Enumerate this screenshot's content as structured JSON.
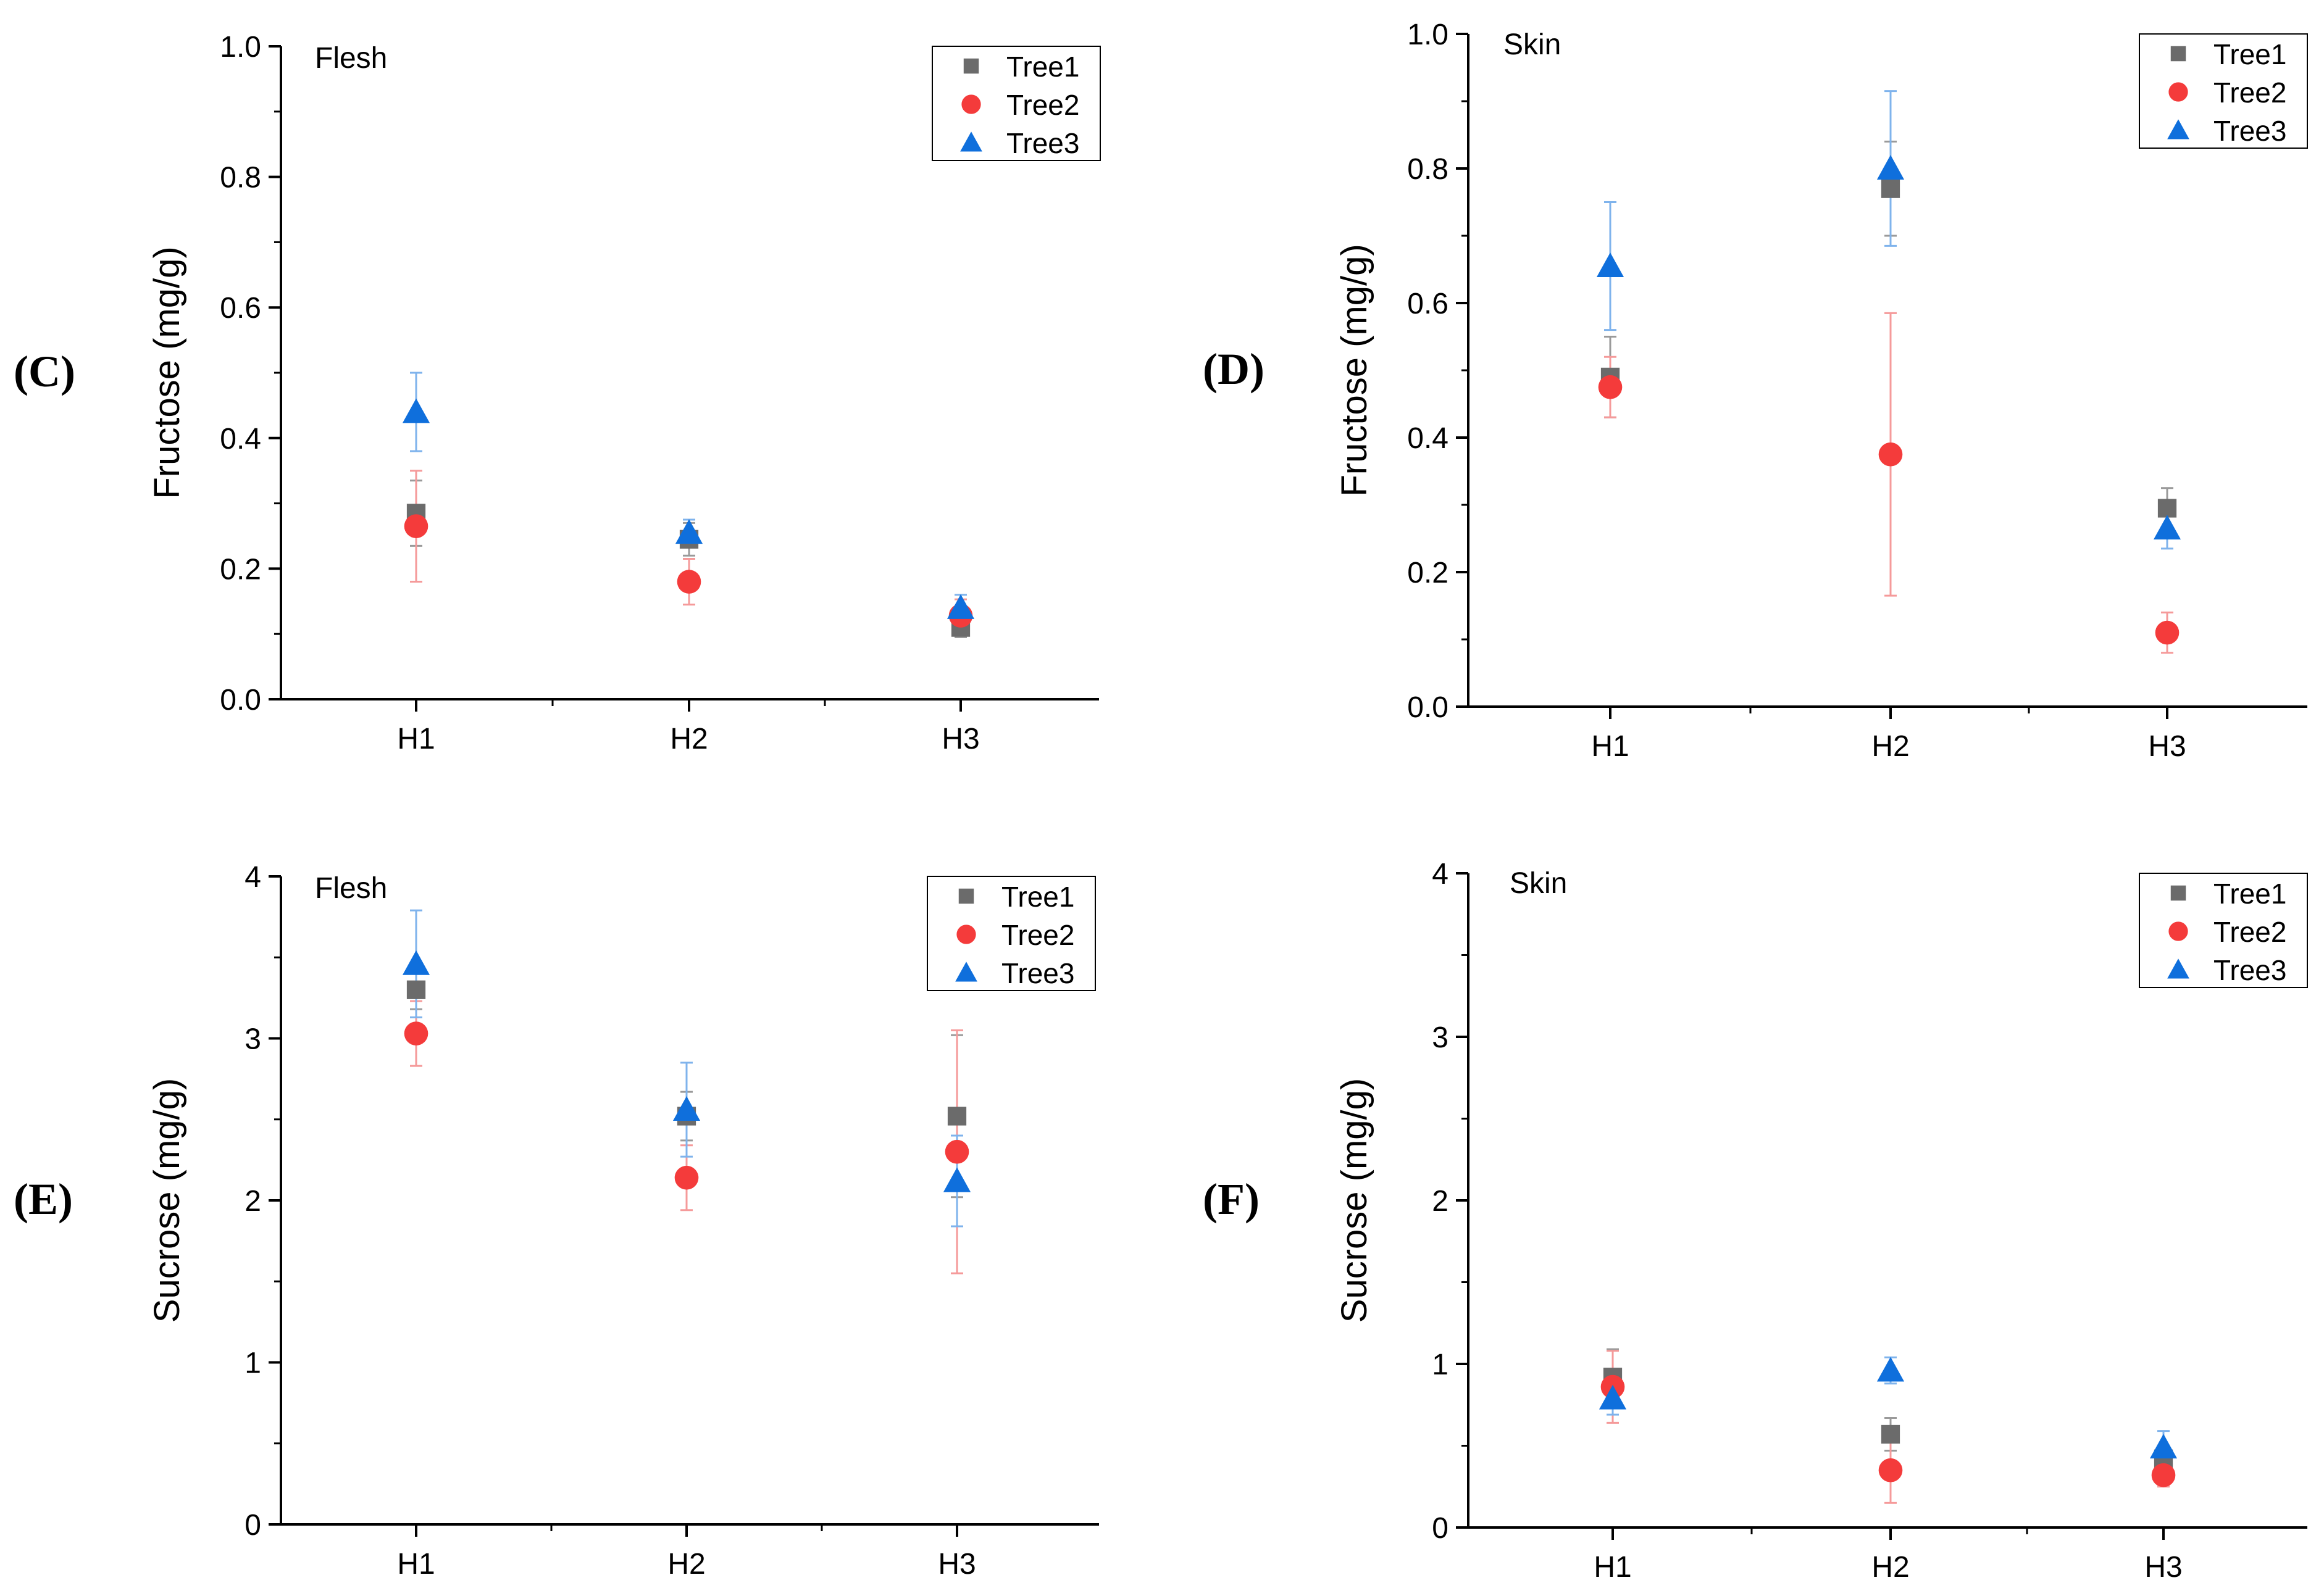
{
  "colors": {
    "tree1": "#6b6b6b",
    "tree2": "#f43b3b",
    "tree3": "#0f6fdc",
    "err_tree2": "#f59a9a",
    "err_tree3": "#7fb3ec",
    "err_tree1": "#9a9a9a"
  },
  "chart_data": [
    {
      "id": "C",
      "type": "scatter",
      "label": "(C)",
      "title": "Flesh",
      "xlabel": "",
      "ylabel": "Fructose (mg/g)",
      "categories": [
        "H1",
        "H2",
        "H3"
      ],
      "ylim": [
        0,
        1.0
      ],
      "yticks": [
        "0.0",
        "0.2",
        "0.4",
        "0.6",
        "0.8",
        "1.0"
      ],
      "legend_position": "top-right",
      "series": [
        {
          "name": "Tree1",
          "marker": "square",
          "values": [
            0.285,
            0.245,
            0.11
          ],
          "errors": [
            0.05,
            0.025,
            0.015
          ]
        },
        {
          "name": "Tree2",
          "marker": "circle",
          "values": [
            0.265,
            0.18,
            0.128
          ],
          "errors": [
            0.085,
            0.035,
            0.025
          ]
        },
        {
          "name": "Tree3",
          "marker": "triangle",
          "values": [
            0.44,
            0.255,
            0.14
          ],
          "errors": [
            0.06,
            0.02,
            0.02
          ]
        }
      ]
    },
    {
      "id": "D",
      "type": "scatter",
      "label": "(D)",
      "title": "Skin",
      "xlabel": "",
      "ylabel": "Fructose (mg/g)",
      "categories": [
        "H1",
        "H2",
        "H3"
      ],
      "ylim": [
        0,
        1.0
      ],
      "yticks": [
        "0.0",
        "0.2",
        "0.4",
        "0.6",
        "0.8",
        "1.0"
      ],
      "legend_position": "top-right",
      "series": [
        {
          "name": "Tree1",
          "marker": "square",
          "values": [
            0.49,
            0.77,
            0.295
          ],
          "errors": [
            0.06,
            0.07,
            0.03
          ]
        },
        {
          "name": "Tree2",
          "marker": "circle",
          "values": [
            0.475,
            0.375,
            0.11
          ],
          "errors": [
            0.045,
            0.21,
            0.03
          ]
        },
        {
          "name": "Tree3",
          "marker": "triangle",
          "values": [
            0.655,
            0.8,
            0.265
          ],
          "errors": [
            0.095,
            0.115,
            0.03
          ]
        }
      ]
    },
    {
      "id": "E",
      "type": "scatter",
      "label": "(E)",
      "title": "Flesh",
      "xlabel": "",
      "ylabel": "Sucrose (mg/g)",
      "categories": [
        "H1",
        "H2",
        "H3"
      ],
      "ylim": [
        0,
        4
      ],
      "yticks": [
        "0",
        "1",
        "2",
        "3",
        "4"
      ],
      "legend_position": "top-right",
      "series": [
        {
          "name": "Tree1",
          "marker": "square",
          "values": [
            3.3,
            2.52,
            2.52
          ],
          "errors": [
            0.12,
            0.15,
            0.5
          ]
        },
        {
          "name": "Tree2",
          "marker": "circle",
          "values": [
            3.03,
            2.14,
            2.3
          ],
          "errors": [
            0.2,
            0.2,
            0.75
          ]
        },
        {
          "name": "Tree3",
          "marker": "triangle",
          "values": [
            3.46,
            2.56,
            2.12
          ],
          "errors": [
            0.33,
            0.29,
            0.28
          ]
        }
      ]
    },
    {
      "id": "F",
      "type": "scatter",
      "label": "(F)",
      "title": "Skin",
      "xlabel": "",
      "ylabel": "Sucrose (mg/g)",
      "categories": [
        "H1",
        "H2",
        "H3"
      ],
      "ylim": [
        0,
        4
      ],
      "yticks": [
        "0",
        "1",
        "2",
        "3",
        "4"
      ],
      "legend_position": "top-right",
      "series": [
        {
          "name": "Tree1",
          "marker": "square",
          "values": [
            0.92,
            0.57,
            0.42
          ],
          "errors": [
            0.17,
            0.1,
            0.06
          ]
        },
        {
          "name": "Tree2",
          "marker": "circle",
          "values": [
            0.86,
            0.35,
            0.32
          ],
          "errors": [
            0.22,
            0.2,
            0.07
          ]
        },
        {
          "name": "Tree3",
          "marker": "triangle",
          "values": [
            0.79,
            0.96,
            0.49
          ],
          "errors": [
            0.1,
            0.08,
            0.1
          ]
        }
      ]
    }
  ]
}
